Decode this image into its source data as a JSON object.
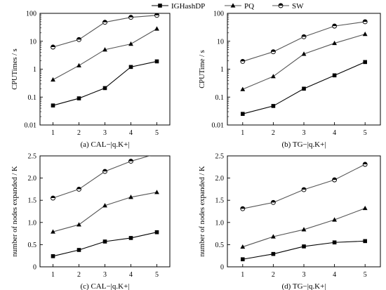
{
  "legend": [
    {
      "name": "IGHashDP",
      "marker": "square"
    },
    {
      "name": "PQ",
      "marker": "triangle"
    },
    {
      "name": "SW",
      "marker": "circle"
    }
  ],
  "chart_data": [
    {
      "type": "line",
      "caption": "(a) CAL−|q.K+|",
      "xlabel": "",
      "ylabel": "CPUTimes / s",
      "x": [
        1,
        2,
        3,
        4,
        5
      ],
      "yscale": "log",
      "ylim": [
        0.01,
        100
      ],
      "yticks": [
        0.01,
        0.1,
        1,
        10,
        100
      ],
      "ytick_labels": [
        "0.01",
        "0.1",
        "1",
        "10",
        "100"
      ],
      "series": [
        {
          "name": "IGHashDP",
          "values": [
            0.05,
            0.09,
            0.21,
            1.2,
            1.9
          ]
        },
        {
          "name": "PQ",
          "values": [
            0.42,
            1.35,
            5.0,
            8.0,
            28.0
          ]
        },
        {
          "name": "SW",
          "values": [
            6.2,
            11.5,
            48.0,
            72.0,
            85.0
          ]
        }
      ]
    },
    {
      "type": "line",
      "caption": "(b) TG−|q.K+|",
      "xlabel": "",
      "ylabel": "CPUTime / s",
      "x": [
        1,
        2,
        3,
        4,
        5
      ],
      "yscale": "log",
      "ylim": [
        0.01,
        100
      ],
      "yticks": [
        0.01,
        0.1,
        1,
        10,
        100
      ],
      "ytick_labels": [
        "0.01",
        "0.1",
        "1",
        "10",
        "100"
      ],
      "series": [
        {
          "name": "IGHashDP",
          "values": [
            0.025,
            0.048,
            0.2,
            0.6,
            1.8
          ]
        },
        {
          "name": "PQ",
          "values": [
            0.19,
            0.55,
            3.5,
            8.5,
            18.0
          ]
        },
        {
          "name": "SW",
          "values": [
            1.9,
            4.2,
            14.5,
            35.0,
            50.0
          ]
        }
      ]
    },
    {
      "type": "line",
      "caption": "(c) CAL−|q.K+|",
      "xlabel": "",
      "ylabel": "number of nodes expanded / K",
      "x": [
        1,
        2,
        3,
        4,
        5
      ],
      "yscale": "linear",
      "ylim": [
        0,
        2.5
      ],
      "yticks": [
        0,
        0.5,
        1.0,
        1.5,
        2.0,
        2.5
      ],
      "ytick_labels": [
        "0",
        "0.5",
        "1.0",
        "1.5",
        "2.0",
        "2.5"
      ],
      "series": [
        {
          "name": "IGHashDP",
          "values": [
            0.24,
            0.38,
            0.57,
            0.65,
            0.78
          ]
        },
        {
          "name": "PQ",
          "values": [
            0.79,
            0.95,
            1.38,
            1.57,
            1.68
          ]
        },
        {
          "name": "SW",
          "values": [
            1.55,
            1.75,
            2.15,
            2.38,
            2.55
          ]
        }
      ]
    },
    {
      "type": "line",
      "caption": "(d) TG−|q.K+|",
      "xlabel": "",
      "ylabel": "number of nodes expanded / K",
      "x": [
        1,
        2,
        3,
        4,
        5
      ],
      "yscale": "linear",
      "ylim": [
        0,
        2.5
      ],
      "yticks": [
        0,
        0.5,
        1.0,
        1.5,
        2.0,
        2.5
      ],
      "ytick_labels": [
        "0",
        "0.5",
        "1.0",
        "1.5",
        "2.0",
        "2.5"
      ],
      "series": [
        {
          "name": "IGHashDP",
          "values": [
            0.17,
            0.29,
            0.46,
            0.55,
            0.58
          ]
        },
        {
          "name": "PQ",
          "values": [
            0.45,
            0.68,
            0.84,
            1.06,
            1.32
          ]
        },
        {
          "name": "SW",
          "values": [
            1.31,
            1.45,
            1.74,
            1.96,
            2.31
          ]
        }
      ]
    }
  ]
}
